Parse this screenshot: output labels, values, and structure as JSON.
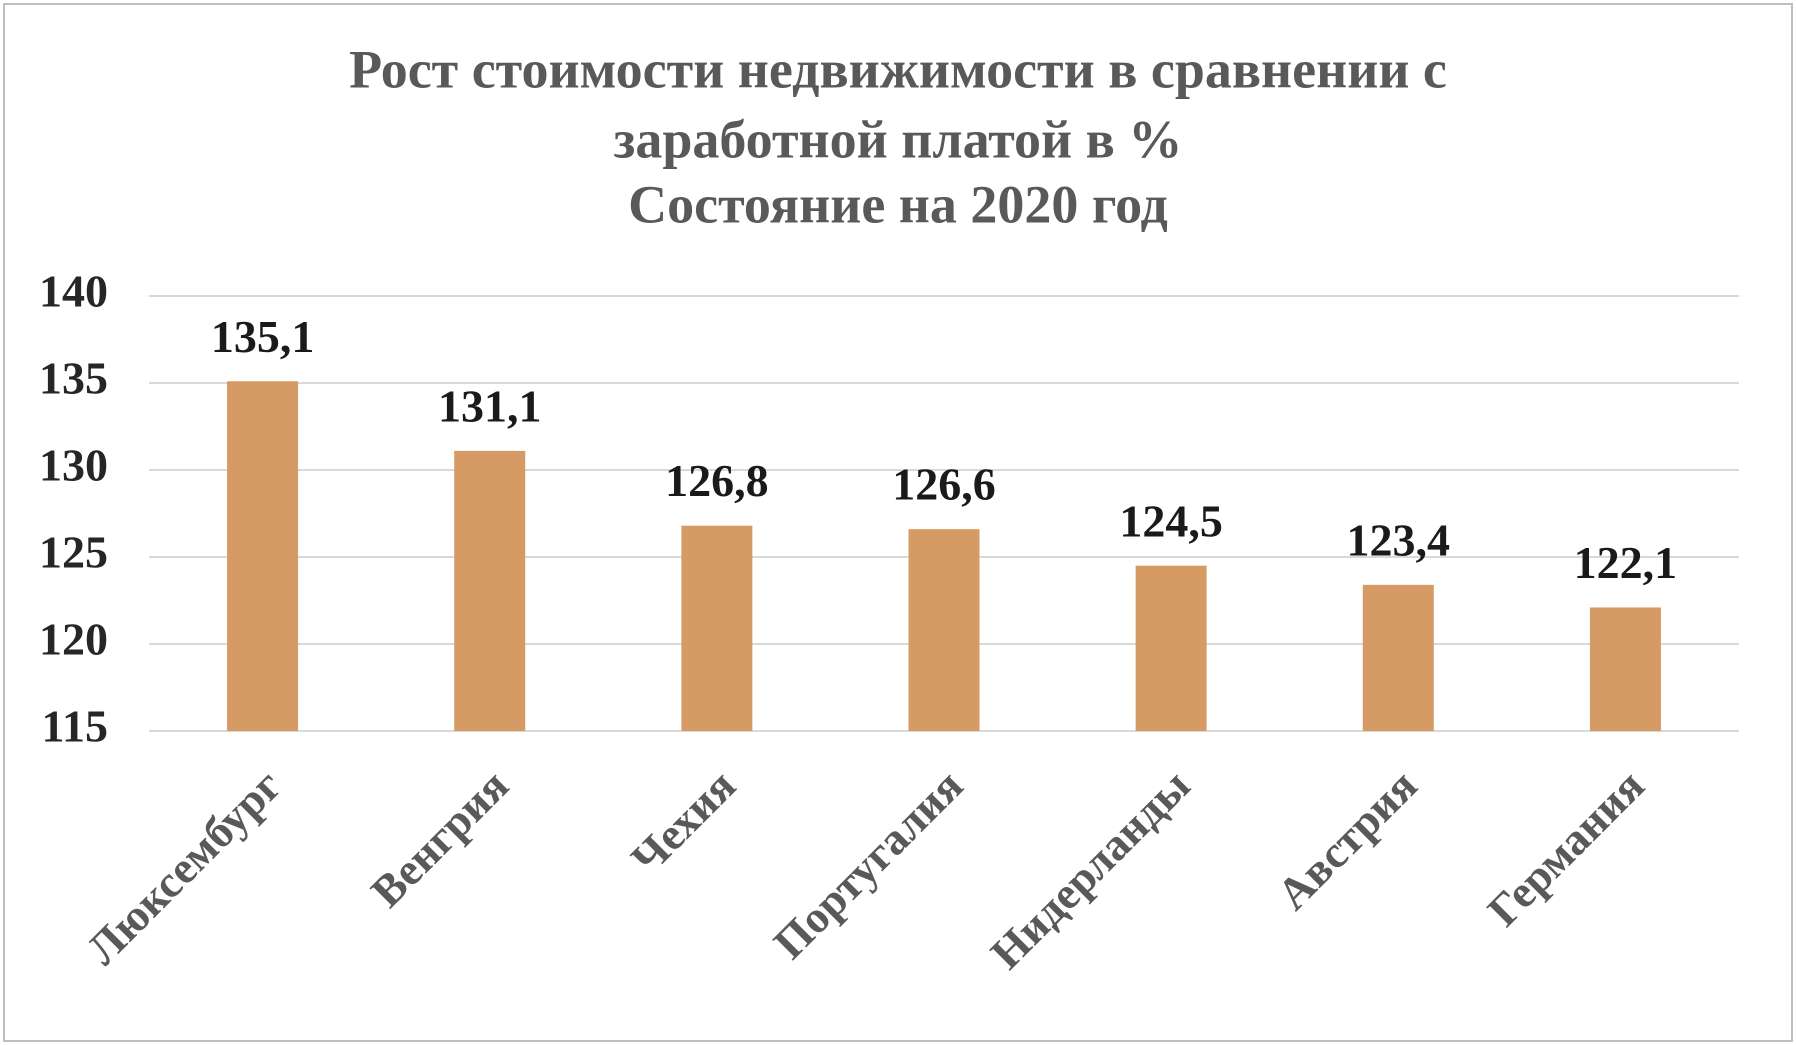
{
  "chart_data": {
    "type": "bar",
    "title": [
      "Рост стоимости недвижимости в сравнении с",
      "заработной платой в %",
      "Состояние на 2020 год"
    ],
    "categories": [
      "Люксембург",
      "Венгрия",
      "Чехия",
      "Португалия",
      "Нидерланды",
      "Австрия",
      "Германия"
    ],
    "values": [
      135.1,
      131.1,
      126.8,
      126.6,
      124.5,
      123.4,
      122.1
    ],
    "value_labels": [
      "135,1",
      "131,1",
      "126,8",
      "126,6",
      "124,5",
      "123,4",
      "122,1"
    ],
    "color": "#d69b64",
    "ylim": [
      115,
      140
    ],
    "yticks": [
      115,
      120,
      125,
      130,
      135,
      140
    ],
    "grid": true
  }
}
